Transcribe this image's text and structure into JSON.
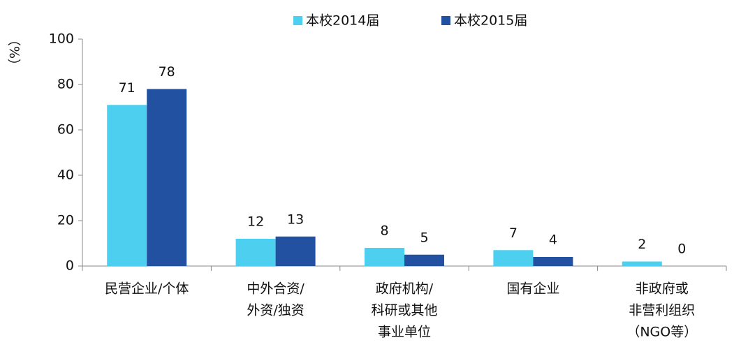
{
  "chart_data": {
    "type": "bar",
    "y_axis_label": "（%）",
    "categories": [
      [
        "民营企业/个体"
      ],
      [
        "中外合资/",
        "外资/独资"
      ],
      [
        "政府机构/",
        "科研或其他",
        "事业单位"
      ],
      [
        "国有企业"
      ],
      [
        "非政府或",
        "非营利组织",
        "（NGO等）"
      ]
    ],
    "series": [
      {
        "name": "本校2014届",
        "color": "#4dcfef",
        "values": [
          71,
          12,
          8,
          7,
          2
        ]
      },
      {
        "name": "本校2015届",
        "color": "#2251a1",
        "values": [
          78,
          13,
          5,
          4,
          0
        ]
      }
    ],
    "ylim": [
      0,
      100
    ],
    "yticks": [
      0,
      20,
      40,
      60,
      80,
      100
    ],
    "grid": false
  }
}
